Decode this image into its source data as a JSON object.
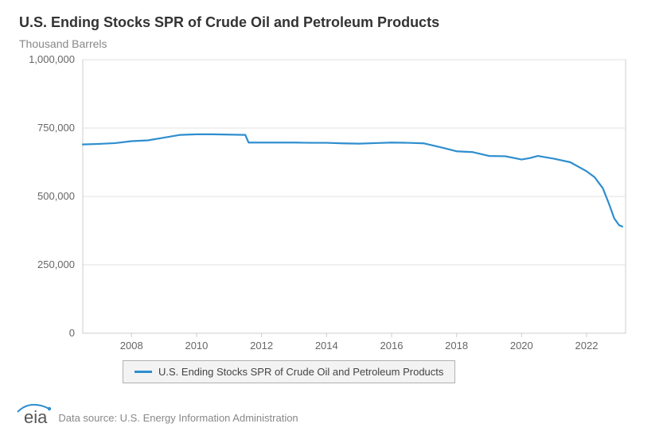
{
  "title": "U.S. Ending Stocks SPR of Crude Oil and Petroleum Products",
  "subtitle": "Thousand Barrels",
  "legend": {
    "label": "U.S. Ending Stocks SPR of Crude Oil and Petroleum Products",
    "color": "#2e8ece"
  },
  "footer": {
    "logo_text": "eia",
    "logo_arc_color": "#2e8ece",
    "datasource": "Data source: U.S. Energy Information Administration"
  },
  "chart": {
    "type": "line",
    "background_color": "#ffffff",
    "plot_border_color": "#cccccc",
    "grid_color": "#e2e2e2",
    "line_color": "#2e8ece",
    "line_width": 2.2,
    "title_fontsize": 18,
    "subtitle_fontsize": 14,
    "tick_fontsize": 13,
    "tick_color": "#666666",
    "xlim": [
      2006.5,
      2023.2
    ],
    "ylim": [
      0,
      1000000
    ],
    "ytick_step": 250000,
    "yticks": [
      0,
      250000,
      500000,
      750000,
      1000000
    ],
    "ytick_labels": [
      "0",
      "250,000",
      "500,000",
      "750,000",
      "1,000,000"
    ],
    "xticks": [
      2008,
      2010,
      2012,
      2014,
      2016,
      2018,
      2020,
      2022
    ],
    "xtick_labels": [
      "2008",
      "2010",
      "2012",
      "2014",
      "2016",
      "2018",
      "2020",
      "2022"
    ],
    "series": {
      "x": [
        2006.5,
        2007,
        2007.5,
        2008,
        2008.5,
        2009,
        2009.5,
        2010,
        2010.5,
        2011,
        2011.5,
        2011.6,
        2012,
        2012.5,
        2013,
        2013.5,
        2014,
        2014.5,
        2015,
        2015.5,
        2016,
        2016.5,
        2017,
        2017.5,
        2018,
        2018.5,
        2019,
        2019.5,
        2020,
        2020.25,
        2020.5,
        2021,
        2021.5,
        2022,
        2022.25,
        2022.5,
        2022.7,
        2022.85,
        2023.0,
        2023.1
      ],
      "y": [
        690000,
        692000,
        695000,
        702000,
        705000,
        715000,
        725000,
        727000,
        727000,
        726000,
        725000,
        697000,
        697000,
        697000,
        697000,
        696000,
        696000,
        694000,
        693000,
        695000,
        697000,
        696000,
        694000,
        680000,
        665000,
        662000,
        648000,
        647000,
        635000,
        640000,
        648000,
        638000,
        625000,
        592000,
        570000,
        530000,
        470000,
        420000,
        395000,
        390000
      ]
    }
  }
}
